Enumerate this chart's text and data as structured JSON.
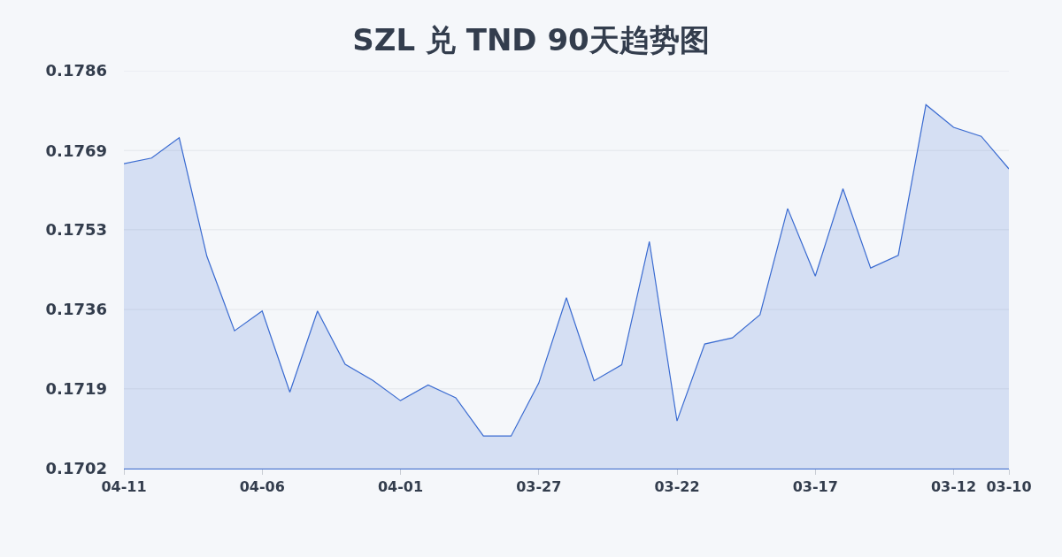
{
  "chart_data": {
    "type": "area",
    "title": "SZL 兑 TND 90天趋势图",
    "categories": [
      "04-11",
      null,
      null,
      null,
      null,
      "04-06",
      null,
      null,
      null,
      null,
      "04-01",
      null,
      null,
      null,
      null,
      "03-27",
      null,
      null,
      null,
      null,
      "03-22",
      null,
      null,
      null,
      null,
      "03-17",
      null,
      null,
      null,
      null,
      "03-12",
      null,
      "03-10"
    ],
    "values": [
      0.17666,
      0.17678,
      0.17721,
      0.1747,
      0.17312,
      0.17354,
      0.17182,
      0.17354,
      0.17241,
      0.17207,
      0.17164,
      0.17197,
      0.1717,
      0.17089,
      0.17089,
      0.17201,
      0.17382,
      0.17206,
      0.1724,
      0.17501,
      0.17121,
      0.17284,
      0.17297,
      0.17346,
      0.17571,
      0.17428,
      0.17613,
      0.17445,
      0.17472,
      0.17791,
      0.17743,
      0.17724,
      0.17655
    ],
    "color": "#3a6bd1",
    "ylim": [
      0.1702,
      0.17863
    ],
    "yticks": [
      {
        "value": 0.1702,
        "label": "0.1702"
      },
      {
        "value": 0.17189,
        "label": "0.1719"
      },
      {
        "value": 0.17357,
        "label": "0.1736"
      },
      {
        "value": 0.17526,
        "label": "0.1753"
      },
      {
        "value": 0.17694,
        "label": "0.1769"
      },
      {
        "value": 0.17863,
        "label": "0.1786"
      }
    ],
    "grid": "y"
  }
}
